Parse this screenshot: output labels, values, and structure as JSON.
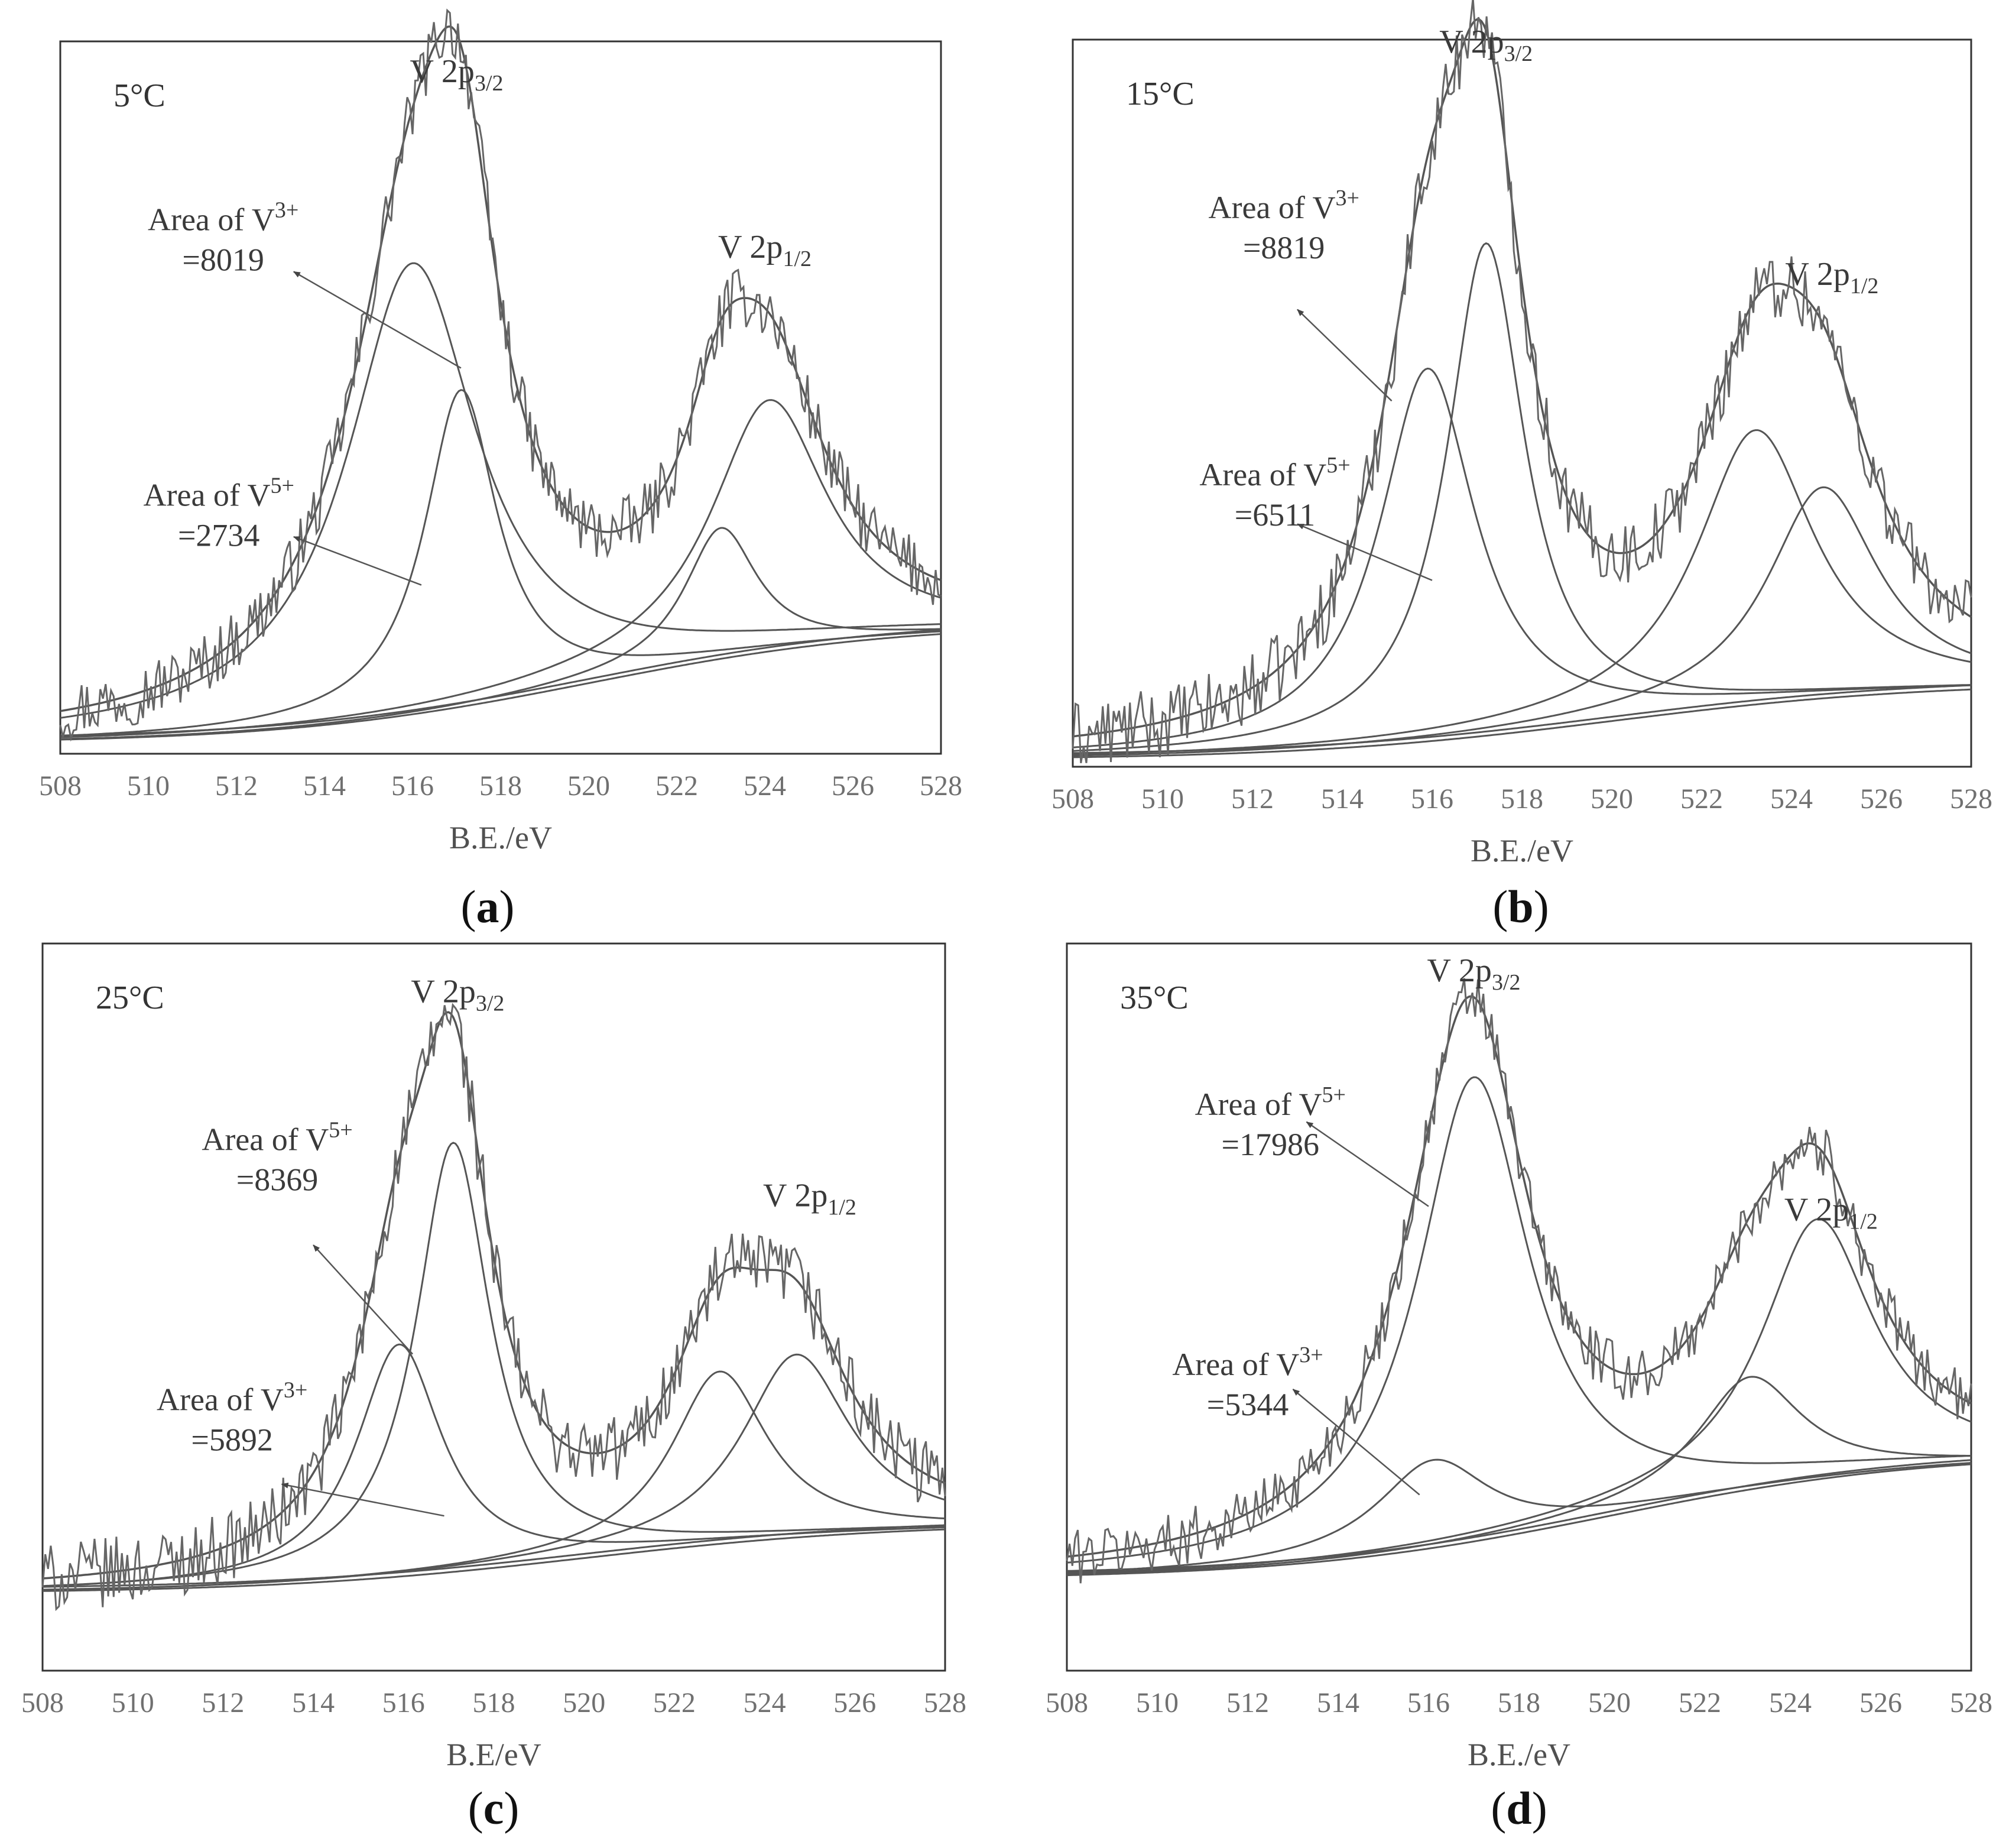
{
  "figure": {
    "panels_letters": [
      "a",
      "b",
      "c",
      "d"
    ]
  },
  "chart_data": [
    {
      "type": "line",
      "panel": "a",
      "temperature_label": "5°C",
      "xlabel": "B.E./eV",
      "ylabel": "",
      "xlim": [
        508,
        528
      ],
      "ylim": [
        0,
        1
      ],
      "x_ticks": [
        508,
        510,
        512,
        514,
        516,
        518,
        520,
        522,
        524,
        526,
        528
      ],
      "peak_labels": {
        "p32": {
          "main": "V 2p",
          "sub": "3/2",
          "x": 517.0,
          "y": 0.975
        },
        "p12": {
          "main": "V 2p",
          "sub": "1/2",
          "x": 524.0,
          "y": 0.72
        }
      },
      "annotations": [
        {
          "species": "V",
          "charge": "3+",
          "prefix": "Area of ",
          "value": "=8019",
          "label_x": 511.7,
          "label_y": 0.76,
          "arrow_from": [
            517.1,
            0.56
          ],
          "arrow_to": [
            513.3,
            0.7
          ]
        },
        {
          "species": "V",
          "charge": "5+",
          "prefix": "Area of ",
          "value": "=2734",
          "label_x": 511.6,
          "label_y": 0.36,
          "arrow_from": [
            516.2,
            0.245
          ],
          "arrow_to": [
            513.3,
            0.315
          ]
        }
      ],
      "background": {
        "low": 0.015,
        "high": 0.19,
        "step_center": 520.0,
        "step_width": 3.5
      },
      "components": [
        {
          "name": "V3+ 2p3/2",
          "center": 516.0,
          "height": 0.655,
          "width": 1.8
        },
        {
          "name": "V5+ 2p3/2",
          "center": 517.1,
          "height": 0.46,
          "width": 1.0
        },
        {
          "name": "V3+ 2p1/2",
          "center": 524.1,
          "height": 0.365,
          "width": 1.6
        },
        {
          "name": "V5+ 2p1/2",
          "center": 523.0,
          "height": 0.19,
          "width": 1.0
        }
      ],
      "noise_amplitude": 0.045
    },
    {
      "type": "line",
      "panel": "b",
      "temperature_label": "15°C",
      "xlabel": "B.E./eV",
      "ylabel": "",
      "xlim": [
        508,
        528
      ],
      "ylim": [
        0,
        1
      ],
      "x_ticks": [
        508,
        510,
        512,
        514,
        516,
        518,
        520,
        522,
        524,
        526,
        528
      ],
      "peak_labels": {
        "p32": {
          "main": "V 2p",
          "sub": "3/2",
          "x": 517.2,
          "y": 1.015
        },
        "p12": {
          "main": "V 2p",
          "sub": "1/2",
          "x": 524.9,
          "y": 0.685
        }
      },
      "annotations": [
        {
          "species": "V",
          "charge": "3+",
          "prefix": "Area of ",
          "value": "=8819",
          "label_x": 512.7,
          "label_y": 0.78,
          "arrow_from": [
            515.1,
            0.52
          ],
          "arrow_to": [
            513.0,
            0.65
          ]
        },
        {
          "species": "V",
          "charge": "5+",
          "prefix": "Area of ",
          "value": "=6511",
          "label_x": 512.5,
          "label_y": 0.4,
          "arrow_from": [
            516.0,
            0.265
          ],
          "arrow_to": [
            513.0,
            0.345
          ]
        }
      ],
      "background": {
        "low": 0.01,
        "high": 0.12,
        "step_center": 520.0,
        "step_width": 3.5
      },
      "components": [
        {
          "name": "V3+ 2p3/2",
          "center": 515.9,
          "height": 0.53,
          "width": 1.3
        },
        {
          "name": "V5+ 2p3/2",
          "center": 517.2,
          "height": 0.7,
          "width": 1.05
        },
        {
          "name": "V3+ 2p1/2",
          "center": 523.2,
          "height": 0.39,
          "width": 1.6
        },
        {
          "name": "V5+ 2p1/2",
          "center": 524.7,
          "height": 0.3,
          "width": 1.5
        }
      ],
      "noise_amplitude": 0.05
    },
    {
      "type": "line",
      "panel": "c",
      "temperature_label": "25°C",
      "xlabel": "B.E/eV",
      "ylabel": "",
      "xlim": [
        508,
        528
      ],
      "ylim": [
        0,
        1
      ],
      "x_ticks": [
        508,
        510,
        512,
        514,
        516,
        518,
        520,
        522,
        524,
        526,
        528
      ],
      "peak_labels": {
        "p32": {
          "main": "V 2p",
          "sub": "3/2",
          "x": 517.2,
          "y": 0.95
        },
        "p12": {
          "main": "V 2p",
          "sub": "1/2",
          "x": 525.0,
          "y": 0.66
        }
      },
      "annotations": [
        {
          "species": "V",
          "charge": "5+",
          "prefix": "Area of ",
          "value": "=8369",
          "label_x": 513.2,
          "label_y": 0.74,
          "arrow_from": [
            516.2,
            0.45
          ],
          "arrow_to": [
            514.0,
            0.605
          ]
        },
        {
          "species": "V",
          "charge": "3+",
          "prefix": "Area of ",
          "value": "=5892",
          "label_x": 512.2,
          "label_y": 0.37,
          "arrow_from": [
            516.9,
            0.22
          ],
          "arrow_to": [
            513.3,
            0.265
          ]
        }
      ],
      "background": {
        "low": 0.11,
        "high": 0.21,
        "step_center": 520.0,
        "step_width": 3.5
      },
      "components": [
        {
          "name": "V3+ 2p3/2",
          "center": 515.9,
          "height": 0.33,
          "width": 1.15
        },
        {
          "name": "V5+ 2p3/2",
          "center": 517.1,
          "height": 0.61,
          "width": 1.0
        },
        {
          "name": "V5+ 2p1/2",
          "center": 523.0,
          "height": 0.245,
          "width": 1.3
        },
        {
          "name": "V3+ 2p1/2",
          "center": 524.7,
          "height": 0.26,
          "width": 1.45
        }
      ],
      "noise_amplitude": 0.05
    },
    {
      "type": "line",
      "panel": "d",
      "temperature_label": "35°C",
      "xlabel": "B.E./eV",
      "ylabel": "",
      "xlim": [
        508,
        528
      ],
      "ylim": [
        0,
        1
      ],
      "x_ticks": [
        508,
        510,
        512,
        514,
        516,
        518,
        520,
        522,
        524,
        526,
        528
      ],
      "peak_labels": {
        "p32": {
          "main": "V 2p",
          "sub": "3/2",
          "x": 517.0,
          "y": 0.98
        },
        "p12": {
          "main": "V 2p",
          "sub": "1/2",
          "x": 524.9,
          "y": 0.64
        }
      },
      "annotations": [
        {
          "species": "V",
          "charge": "5+",
          "prefix": "Area of ",
          "value": "=17986",
          "label_x": 512.5,
          "label_y": 0.79,
          "arrow_from": [
            516.0,
            0.66
          ],
          "arrow_to": [
            513.3,
            0.78
          ]
        },
        {
          "species": "V",
          "charge": "3+",
          "prefix": "Area of ",
          "value": "=5344",
          "label_x": 512.0,
          "label_y": 0.42,
          "arrow_from": [
            515.8,
            0.25
          ],
          "arrow_to": [
            513.0,
            0.4
          ]
        }
      ],
      "background": {
        "low": 0.13,
        "high": 0.31,
        "step_center": 520.0,
        "step_width": 3.5
      },
      "components": [
        {
          "name": "V3+ 2p3/2",
          "center": 516.1,
          "height": 0.125,
          "width": 1.5
        },
        {
          "name": "V5+ 2p3/2",
          "center": 517.0,
          "height": 0.66,
          "width": 1.5
        },
        {
          "name": "V3+ 2p1/2",
          "center": 523.1,
          "height": 0.16,
          "width": 1.4
        },
        {
          "name": "V5+ 2p1/2",
          "center": 524.6,
          "height": 0.37,
          "width": 1.5
        }
      ],
      "noise_amplitude": 0.04
    }
  ]
}
